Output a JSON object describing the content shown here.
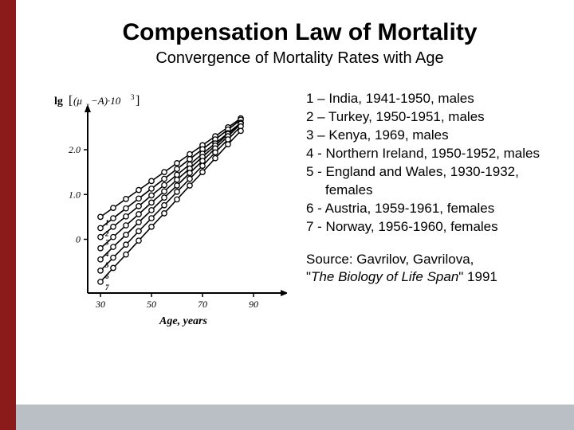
{
  "header": {
    "title": "Compensation Law of Mortality",
    "subtitle": "Convergence of Mortality Rates with Age"
  },
  "chart": {
    "type": "line",
    "y_axis_label_svg": "lg[(μₓ−A)·10³]",
    "x_axis_label": "Age, years",
    "x_ticks": [
      30,
      50,
      70,
      90
    ],
    "y_ticks": [
      0,
      1.0,
      2.0
    ],
    "xlim": [
      25,
      100
    ],
    "ylim": [
      -1.2,
      2.8
    ],
    "background_color": "#ffffff",
    "axis_color": "#000000",
    "line_color": "#000000",
    "marker_style": "open-circle",
    "marker_fill": "#ffffff",
    "marker_stroke": "#000000",
    "line_width": 1.6,
    "marker_radius": 3.2,
    "series": [
      {
        "label": "1",
        "x": [
          30,
          35,
          40,
          45,
          50,
          55,
          60,
          65,
          70,
          75,
          80,
          85
        ],
        "y": [
          0.5,
          0.7,
          0.9,
          1.1,
          1.3,
          1.5,
          1.7,
          1.9,
          2.1,
          2.3,
          2.5,
          2.7
        ]
      },
      {
        "label": "2",
        "x": [
          30,
          35,
          40,
          45,
          50,
          55,
          60,
          65,
          70,
          75,
          80,
          85
        ],
        "y": [
          0.25,
          0.47,
          0.69,
          0.91,
          1.13,
          1.35,
          1.57,
          1.79,
          2.01,
          2.23,
          2.45,
          2.67
        ]
      },
      {
        "label": "3",
        "x": [
          30,
          35,
          40,
          45,
          50,
          55,
          60,
          65,
          70,
          75,
          80,
          85
        ],
        "y": [
          0.05,
          0.28,
          0.51,
          0.74,
          0.98,
          1.21,
          1.44,
          1.67,
          1.91,
          2.14,
          2.37,
          2.6
        ]
      },
      {
        "label": "4",
        "x": [
          30,
          35,
          40,
          45,
          50,
          55,
          60,
          65,
          70,
          75,
          80,
          85
        ],
        "y": [
          -0.2,
          0.05,
          0.31,
          0.56,
          0.82,
          1.07,
          1.33,
          1.58,
          1.84,
          2.09,
          2.35,
          2.6
        ]
      },
      {
        "label": "5",
        "x": [
          30,
          35,
          40,
          45,
          50,
          55,
          60,
          65,
          70,
          75,
          80,
          85
        ],
        "y": [
          -0.45,
          -0.17,
          0.1,
          0.38,
          0.65,
          0.93,
          1.2,
          1.48,
          1.75,
          2.03,
          2.3,
          2.58
        ]
      },
      {
        "label": "6",
        "x": [
          30,
          35,
          40,
          45,
          50,
          55,
          60,
          65,
          70,
          75,
          80,
          85
        ],
        "y": [
          -0.7,
          -0.41,
          -0.12,
          0.18,
          0.47,
          0.76,
          1.06,
          1.35,
          1.64,
          1.94,
          2.23,
          2.52
        ]
      },
      {
        "label": "7",
        "x": [
          30,
          35,
          40,
          45,
          50,
          55,
          60,
          65,
          70,
          75,
          80,
          85
        ],
        "y": [
          -0.95,
          -0.64,
          -0.34,
          -0.03,
          0.28,
          0.58,
          0.89,
          1.2,
          1.5,
          1.81,
          2.12,
          2.42
        ]
      }
    ],
    "series_label_fontsize": 9
  },
  "legend": {
    "items": [
      {
        "num": "1",
        "sep": " – ",
        "text": "India, 1941-1950, males"
      },
      {
        "num": "2",
        "sep": " – ",
        "text": "Turkey, 1950-1951, males"
      },
      {
        "num": "3",
        "sep": " – ",
        "text": "Kenya, 1969, males"
      },
      {
        "num": "4",
        "sep": " - ",
        "text": "Northern Ireland, 1950-1952, males"
      },
      {
        "num": "5",
        "sep": " - ",
        "text": "England and Wales, 1930-1932, females"
      },
      {
        "num": "6",
        "sep": " - ",
        "text": "Austria, 1959-1961, females"
      },
      {
        "num": "7",
        "sep": " - ",
        "text": "Norway, 1956-1960, females"
      }
    ]
  },
  "source": {
    "line1": "Source: Gavrilov, Gavrilova,",
    "line2_open": "\"",
    "line2_title": "The Biology of Life Span",
    "line2_close": "\" 1991"
  },
  "colors": {
    "accent_bar": "#8b1a1a",
    "bottom_bar": "#b9bfc4"
  }
}
